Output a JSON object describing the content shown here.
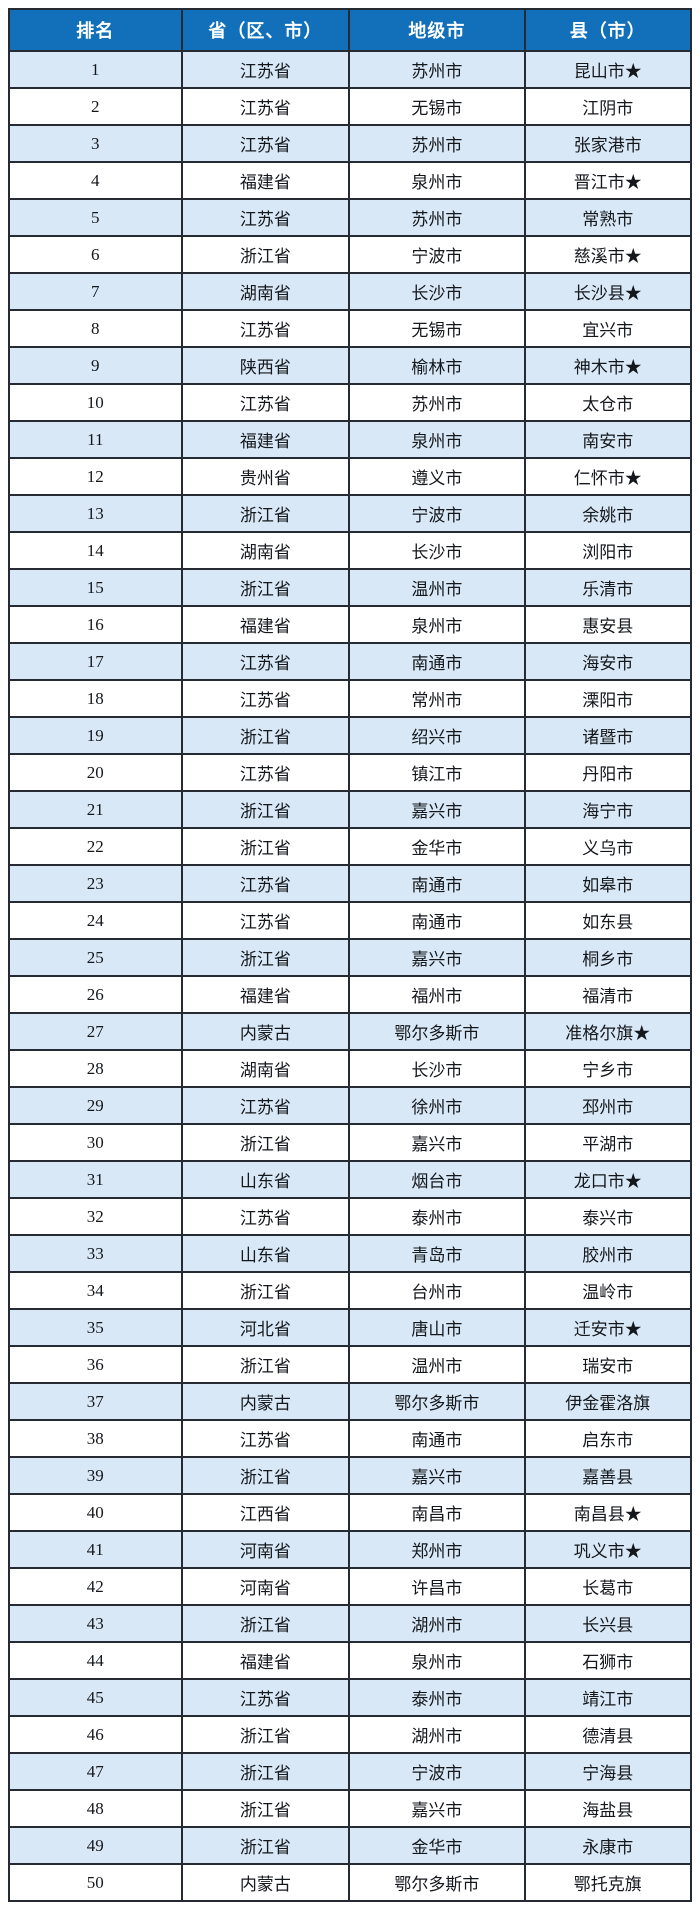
{
  "colors": {
    "header_bg": "#1170b9",
    "header_text": "#ffffff",
    "row_alt_bg": "#d9e8f6",
    "row_bg": "#ffffff",
    "border": "#262b33",
    "body_text": "#14171c"
  },
  "table": {
    "headers": [
      "排名",
      "省（区、市）",
      "地级市",
      "县（市）"
    ],
    "star_marker": "★",
    "rows": [
      {
        "rank": "1",
        "province": "江苏省",
        "city": "苏州市",
        "county": "昆山市★"
      },
      {
        "rank": "2",
        "province": "江苏省",
        "city": "无锡市",
        "county": "江阴市"
      },
      {
        "rank": "3",
        "province": "江苏省",
        "city": "苏州市",
        "county": "张家港市"
      },
      {
        "rank": "4",
        "province": "福建省",
        "city": "泉州市",
        "county": "晋江市★"
      },
      {
        "rank": "5",
        "province": "江苏省",
        "city": "苏州市",
        "county": "常熟市"
      },
      {
        "rank": "6",
        "province": "浙江省",
        "city": "宁波市",
        "county": "慈溪市★"
      },
      {
        "rank": "7",
        "province": "湖南省",
        "city": "长沙市",
        "county": "长沙县★"
      },
      {
        "rank": "8",
        "province": "江苏省",
        "city": "无锡市",
        "county": "宜兴市"
      },
      {
        "rank": "9",
        "province": "陕西省",
        "city": "榆林市",
        "county": "神木市★"
      },
      {
        "rank": "10",
        "province": "江苏省",
        "city": "苏州市",
        "county": "太仓市"
      },
      {
        "rank": "11",
        "province": "福建省",
        "city": "泉州市",
        "county": "南安市"
      },
      {
        "rank": "12",
        "province": "贵州省",
        "city": "遵义市",
        "county": "仁怀市★"
      },
      {
        "rank": "13",
        "province": "浙江省",
        "city": "宁波市",
        "county": "余姚市"
      },
      {
        "rank": "14",
        "province": "湖南省",
        "city": "长沙市",
        "county": "浏阳市"
      },
      {
        "rank": "15",
        "province": "浙江省",
        "city": "温州市",
        "county": "乐清市"
      },
      {
        "rank": "16",
        "province": "福建省",
        "city": "泉州市",
        "county": "惠安县"
      },
      {
        "rank": "17",
        "province": "江苏省",
        "city": "南通市",
        "county": "海安市"
      },
      {
        "rank": "18",
        "province": "江苏省",
        "city": "常州市",
        "county": "溧阳市"
      },
      {
        "rank": "19",
        "province": "浙江省",
        "city": "绍兴市",
        "county": "诸暨市"
      },
      {
        "rank": "20",
        "province": "江苏省",
        "city": "镇江市",
        "county": "丹阳市"
      },
      {
        "rank": "21",
        "province": "浙江省",
        "city": "嘉兴市",
        "county": "海宁市"
      },
      {
        "rank": "22",
        "province": "浙江省",
        "city": "金华市",
        "county": "义乌市"
      },
      {
        "rank": "23",
        "province": "江苏省",
        "city": "南通市",
        "county": "如皋市"
      },
      {
        "rank": "24",
        "province": "江苏省",
        "city": "南通市",
        "county": "如东县"
      },
      {
        "rank": "25",
        "province": "浙江省",
        "city": "嘉兴市",
        "county": "桐乡市"
      },
      {
        "rank": "26",
        "province": "福建省",
        "city": "福州市",
        "county": "福清市"
      },
      {
        "rank": "27",
        "province": "内蒙古",
        "city": "鄂尔多斯市",
        "county": "准格尔旗★"
      },
      {
        "rank": "28",
        "province": "湖南省",
        "city": "长沙市",
        "county": "宁乡市"
      },
      {
        "rank": "29",
        "province": "江苏省",
        "city": "徐州市",
        "county": "邳州市"
      },
      {
        "rank": "30",
        "province": "浙江省",
        "city": "嘉兴市",
        "county": "平湖市"
      },
      {
        "rank": "31",
        "province": "山东省",
        "city": "烟台市",
        "county": "龙口市★"
      },
      {
        "rank": "32",
        "province": "江苏省",
        "city": "泰州市",
        "county": "泰兴市"
      },
      {
        "rank": "33",
        "province": "山东省",
        "city": "青岛市",
        "county": "胶州市"
      },
      {
        "rank": "34",
        "province": "浙江省",
        "city": "台州市",
        "county": "温岭市"
      },
      {
        "rank": "35",
        "province": "河北省",
        "city": "唐山市",
        "county": "迁安市★"
      },
      {
        "rank": "36",
        "province": "浙江省",
        "city": "温州市",
        "county": "瑞安市"
      },
      {
        "rank": "37",
        "province": "内蒙古",
        "city": "鄂尔多斯市",
        "county": "伊金霍洛旗"
      },
      {
        "rank": "38",
        "province": "江苏省",
        "city": "南通市",
        "county": "启东市"
      },
      {
        "rank": "39",
        "province": "浙江省",
        "city": "嘉兴市",
        "county": "嘉善县"
      },
      {
        "rank": "40",
        "province": "江西省",
        "city": "南昌市",
        "county": "南昌县★"
      },
      {
        "rank": "41",
        "province": "河南省",
        "city": "郑州市",
        "county": "巩义市★"
      },
      {
        "rank": "42",
        "province": "河南省",
        "city": "许昌市",
        "county": "长葛市"
      },
      {
        "rank": "43",
        "province": "浙江省",
        "city": "湖州市",
        "county": "长兴县"
      },
      {
        "rank": "44",
        "province": "福建省",
        "city": "泉州市",
        "county": "石狮市"
      },
      {
        "rank": "45",
        "province": "江苏省",
        "city": "泰州市",
        "county": "靖江市"
      },
      {
        "rank": "46",
        "province": "浙江省",
        "city": "湖州市",
        "county": "德清县"
      },
      {
        "rank": "47",
        "province": "浙江省",
        "city": "宁波市",
        "county": "宁海县"
      },
      {
        "rank": "48",
        "province": "浙江省",
        "city": "嘉兴市",
        "county": "海盐县"
      },
      {
        "rank": "49",
        "province": "浙江省",
        "city": "金华市",
        "county": "永康市"
      },
      {
        "rank": "50",
        "province": "内蒙古",
        "city": "鄂尔多斯市",
        "county": "鄂托克旗"
      }
    ]
  }
}
